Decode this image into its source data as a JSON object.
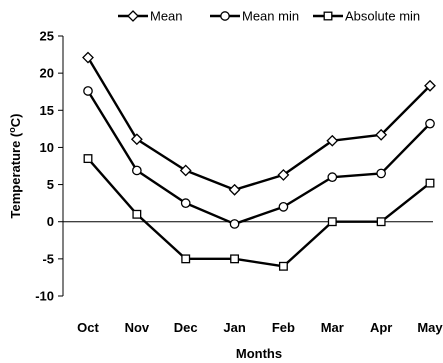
{
  "chart_data": {
    "type": "line",
    "categories": [
      "Oct",
      "Nov",
      "Dec",
      "Jan",
      "Feb",
      "Mar",
      "Apr",
      "May"
    ],
    "series": [
      {
        "name": "Mean",
        "marker": "diamond",
        "values": [
          22.1,
          11.1,
          6.9,
          4.3,
          6.3,
          10.9,
          11.7,
          18.3
        ]
      },
      {
        "name": "Mean min",
        "marker": "circle",
        "values": [
          17.6,
          6.9,
          2.5,
          -0.3,
          2.0,
          6.0,
          6.5,
          13.2
        ]
      },
      {
        "name": "Absolute min",
        "marker": "square",
        "values": [
          8.5,
          1.0,
          -5.0,
          -5.0,
          -6.0,
          0.0,
          0.0,
          5.2
        ]
      }
    ],
    "xlabel": "Months",
    "ylabel": "Temperature (°C)",
    "ylim": [
      -10,
      25
    ],
    "yticks": [
      25,
      20,
      15,
      10,
      5,
      0,
      -5,
      -10
    ],
    "grid": false,
    "legend": "top",
    "colors": {
      "line": "#000000",
      "marker_fill": "#ffffff",
      "axis": "#000000"
    }
  }
}
